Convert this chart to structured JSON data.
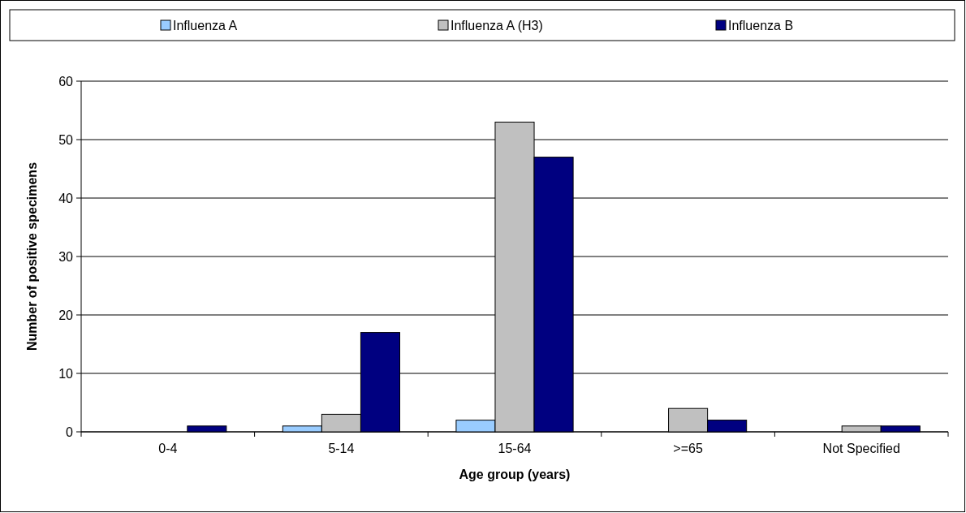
{
  "chart_data": {
    "type": "bar",
    "xlabel": "Age group (years)",
    "ylabel": "Number of positive specimens",
    "categories": [
      "0-4",
      "5-14",
      "15-64",
      ">=65",
      "Not Specified"
    ],
    "series": [
      {
        "name": "Influenza A",
        "color": "#99ccff",
        "values": [
          0,
          1,
          2,
          0,
          0
        ]
      },
      {
        "name": "Influenza A (H3)",
        "color": "#c0c0c0",
        "values": [
          0,
          3,
          53,
          4,
          1
        ]
      },
      {
        "name": "Influenza B",
        "color": "#000080",
        "values": [
          1,
          17,
          47,
          2,
          1
        ]
      }
    ],
    "ylim": [
      0,
      60
    ],
    "yticks": [
      0,
      10,
      20,
      30,
      40,
      50,
      60
    ],
    "grid": "y",
    "legend": "top"
  }
}
